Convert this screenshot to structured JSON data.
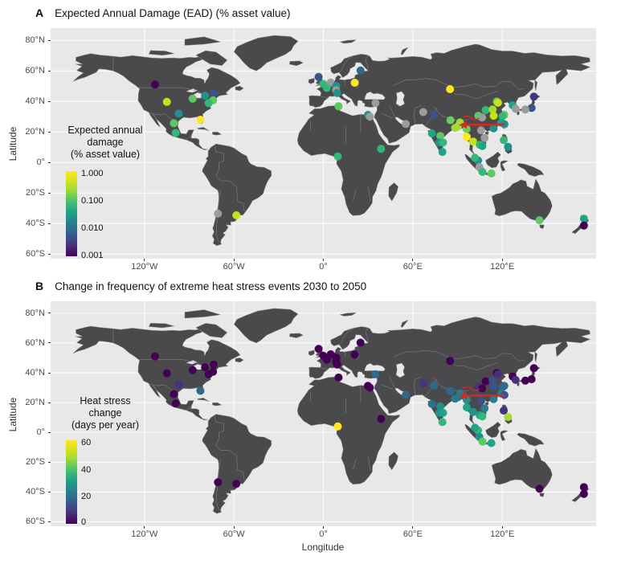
{
  "figure": {
    "background": "#ffffff",
    "panel_bg": "#e8e8e8",
    "land_color": "#4a4a4d",
    "country_border_color": "#8d8d91",
    "grid_color": "#ffffff",
    "na_point_color": "#9c9c9c",
    "arrow_color": "#d42a20"
  },
  "panels": [
    {
      "label": "A",
      "title": "Expected Annual Damage (EAD) (% asset value)",
      "ylabel": "Latitude",
      "xlabel": "",
      "legend": {
        "title_lines": [
          "Expected annual",
          "damage",
          "(% asset value)"
        ],
        "tick_labels": [
          "1.000",
          "0.100",
          "0.010",
          "0.001"
        ],
        "scale": "log"
      },
      "y_tick_labels": [
        "80°N",
        "60°N",
        "40°N",
        "20°N",
        "0°",
        "20°S",
        "40°S",
        "60°S"
      ],
      "x_tick_labels": [
        "120°W",
        "60°W",
        "0°",
        "60°E",
        "120°E"
      ]
    },
    {
      "label": "B",
      "title": "Change in frequency of extreme heat stress events 2030 to 2050",
      "ylabel": "Latitude",
      "xlabel": "Longitude",
      "legend": {
        "title_lines": [
          "Heat stress",
          "change",
          "(days per year)"
        ],
        "tick_labels": [
          "60",
          "40",
          "20",
          "0"
        ],
        "scale": "linear"
      },
      "y_tick_labels": [
        "80°N",
        "60°N",
        "40°N",
        "20°N",
        "0°",
        "20°S",
        "40°S",
        "60°S"
      ],
      "x_tick_labels": [
        "120°W",
        "60°W",
        "0°",
        "60°E",
        "120°E"
      ]
    }
  ],
  "chart_data": {
    "type": "scatter",
    "projection": "equirectangular",
    "lon_range": [
      -183,
      183
    ],
    "lat_range": [
      -63,
      88
    ],
    "lat_grid": [
      80,
      60,
      40,
      20,
      0,
      -20,
      -40,
      -60
    ],
    "lon_grid": [
      -120,
      -60,
      0,
      60,
      120
    ],
    "panel_a_scale": {
      "variable": "expected annual damage",
      "unit": "% asset value",
      "scale": "log",
      "ticks": [
        1.0,
        0.1,
        0.01,
        0.001
      ],
      "palette": "viridis",
      "na_color_used": true
    },
    "panel_b_scale": {
      "variable": "heat stress change",
      "unit": "days per year",
      "scale": "linear",
      "ticks": [
        60,
        40,
        20,
        0
      ],
      "palette": "viridis"
    },
    "annotation_arrow": {
      "lat": 24.6,
      "from_lon": 121.5,
      "to_lon": 90.8,
      "present_in_panels": [
        "A",
        "B"
      ]
    },
    "point_columns": [
      "lon",
      "lat",
      "ead_pct",
      "ead_color",
      "heat_days",
      "heat_color"
    ],
    "points": [
      [
        -113,
        51,
        0.001,
        "#440154",
        1,
        "#440154"
      ],
      [
        -105,
        39.7,
        0.5,
        "#c9e11b",
        2,
        "#440154"
      ],
      [
        -97,
        32,
        0.03,
        "#21918c",
        6,
        "#46327e"
      ],
      [
        -87.7,
        41.8,
        0.2,
        "#5ec962",
        1,
        "#440154"
      ],
      [
        -79.4,
        43.7,
        0.03,
        "#21918c",
        1,
        "#440154"
      ],
      [
        -73.6,
        45.5,
        0.004,
        "#3b528b",
        1,
        "#440154"
      ],
      [
        -74,
        40.7,
        0.2,
        "#5ec962",
        2,
        "#440154"
      ],
      [
        -77,
        38.9,
        0.1,
        "#35b779",
        2,
        "#440154"
      ],
      [
        -82.5,
        28,
        1.0,
        "#fde725",
        15,
        "#31688e"
      ],
      [
        -100.3,
        25.7,
        0.2,
        "#5ec962",
        2,
        "#440154"
      ],
      [
        -99.1,
        19.4,
        0.1,
        "#35b779",
        2,
        "#440154"
      ],
      [
        -70.7,
        -33.5,
        null,
        "#9c9c9c",
        1,
        "#440154"
      ],
      [
        -58.4,
        -34.6,
        0.5,
        "#c9e11b",
        1,
        "#440154"
      ],
      [
        -3.2,
        56,
        0.004,
        "#3b528b",
        1,
        "#440154"
      ],
      [
        -0.1,
        51.5,
        0.1,
        "#35b779",
        1,
        "#440154"
      ],
      [
        4.9,
        52.4,
        null,
        "#9c9c9c",
        1,
        "#440154"
      ],
      [
        2.3,
        48.8,
        0.1,
        "#35b779",
        1,
        "#440154"
      ],
      [
        8.7,
        50.1,
        0.03,
        "#21918c",
        1,
        "#440154"
      ],
      [
        8.5,
        47.4,
        null,
        "#9c9c9c",
        1,
        "#440154"
      ],
      [
        9.2,
        45.5,
        0.02,
        "#21918c",
        2,
        "#440154"
      ],
      [
        21,
        52.2,
        1.0,
        "#fde725",
        1,
        "#440154"
      ],
      [
        24.9,
        60.2,
        0.008,
        "#31688e",
        1,
        "#440154"
      ],
      [
        10.2,
        36.8,
        0.2,
        "#5ec962",
        3,
        "#440154"
      ],
      [
        29.9,
        31.2,
        0.03,
        "#21918c",
        3,
        "#440154"
      ],
      [
        31.2,
        30,
        null,
        "#9c9c9c",
        3,
        "#440154"
      ],
      [
        35,
        39,
        null,
        "#9c9c9c",
        14,
        "#31688e"
      ],
      [
        55.3,
        25.2,
        null,
        "#9c9c9c",
        16,
        "#31688e"
      ],
      [
        38.7,
        9,
        0.1,
        "#35b779",
        2,
        "#440154"
      ],
      [
        9.7,
        4,
        0.1,
        "#35b779",
        58,
        "#fde725"
      ],
      [
        85,
        48,
        1.0,
        "#fde725",
        1,
        "#440154"
      ],
      [
        67,
        33,
        null,
        "#9c9c9c",
        5,
        "#46327e"
      ],
      [
        74.3,
        31.5,
        0.004,
        "#3b528b",
        15,
        "#31688e"
      ],
      [
        72.8,
        19,
        0.05,
        "#20a486",
        18,
        "#2c728e"
      ],
      [
        78.5,
        17.4,
        0.2,
        "#5ec962",
        25,
        "#21918c"
      ],
      [
        77.6,
        13,
        0.03,
        "#21918c",
        25,
        "#21918c"
      ],
      [
        80.3,
        13.1,
        0.1,
        "#35b779",
        28,
        "#20a486"
      ],
      [
        79.9,
        6.9,
        0.05,
        "#20a486",
        32,
        "#35b779"
      ],
      [
        88.4,
        22.6,
        0.4,
        "#a5db36",
        20,
        "#287c8e"
      ],
      [
        90.4,
        23.7,
        0.45,
        "#a5db36",
        18,
        "#2c728e"
      ],
      [
        85.3,
        27.7,
        0.25,
        "#6cce59",
        12,
        "#31688e"
      ],
      [
        91.7,
        26.2,
        0.4,
        "#a5db36",
        20,
        "#287c8e"
      ],
      [
        96.1,
        21.9,
        0.25,
        "#6cce59",
        25,
        "#21918c"
      ],
      [
        96.2,
        16.8,
        1.0,
        "#fde725",
        27,
        "#20a486"
      ],
      [
        100.5,
        13.7,
        0.5,
        "#c9e11b",
        25,
        "#21918c"
      ],
      [
        104.9,
        11.6,
        0.1,
        "#35b779",
        28,
        "#20a486"
      ],
      [
        106.7,
        10.8,
        0.05,
        "#20a486",
        32,
        "#35b779"
      ],
      [
        105.8,
        21,
        null,
        "#9c9c9c",
        12,
        "#3b528b"
      ],
      [
        108.2,
        16.1,
        null,
        "#9c9c9c",
        20,
        "#287c8e"
      ],
      [
        104,
        30.6,
        0.2,
        "#5ec962",
        6,
        "#46327e"
      ],
      [
        106.5,
        29.5,
        null,
        "#9c9c9c",
        2,
        "#440154"
      ],
      [
        108.9,
        34.3,
        0.1,
        "#35b779",
        2,
        "#440154"
      ],
      [
        116.4,
        39.9,
        0.25,
        "#6cce59",
        1,
        "#440154"
      ],
      [
        117.2,
        39.1,
        0.5,
        "#c9e11b",
        5,
        "#46327e"
      ],
      [
        113.6,
        34.7,
        0.4,
        "#a5db36",
        10,
        "#3b528b"
      ],
      [
        114.3,
        30.6,
        0.5,
        "#c9e11b",
        10,
        "#3b528b"
      ],
      [
        121.4,
        31.2,
        0.2,
        "#5ec962",
        14,
        "#31688e"
      ],
      [
        120.2,
        30.3,
        0.1,
        "#35b779",
        14,
        "#31688e"
      ],
      [
        119.3,
        26.1,
        0.05,
        "#20a486",
        20,
        "#287c8e"
      ],
      [
        114.2,
        22.3,
        0.03,
        "#21918c",
        20,
        "#287c8e"
      ],
      [
        121.5,
        25.1,
        0.03,
        "#21918c",
        10,
        "#3b528b"
      ],
      [
        127,
        37.5,
        0.05,
        "#20a486",
        1,
        "#440154"
      ],
      [
        129,
        35.2,
        null,
        "#9c9c9c",
        5,
        "#46327e"
      ],
      [
        139.7,
        35.7,
        0.004,
        "#3b528b",
        1,
        "#440154"
      ],
      [
        135.5,
        34.7,
        null,
        "#9c9c9c",
        1,
        "#440154"
      ],
      [
        141.3,
        43.1,
        0.002,
        "#46327e",
        1,
        "#440154"
      ],
      [
        121,
        14.6,
        0.1,
        "#35b779",
        6,
        "#46327e"
      ],
      [
        123.9,
        10.3,
        0.03,
        "#21918c",
        45,
        "#a5db36"
      ],
      [
        103.8,
        1.3,
        0.03,
        "#21918c",
        32,
        "#35b779"
      ],
      [
        101.7,
        3.1,
        0.1,
        "#35b779",
        27,
        "#20a486"
      ],
      [
        104.7,
        -3,
        null,
        "#9c9c9c",
        25,
        "#21918c"
      ],
      [
        106.8,
        -6.2,
        0.1,
        "#35b779",
        38,
        "#5ec962"
      ],
      [
        112.7,
        -7.2,
        0.2,
        "#5ec962",
        27,
        "#20a486"
      ],
      [
        145,
        -37.8,
        0.2,
        "#5ec962",
        1,
        "#440154"
      ],
      [
        174.8,
        -36.8,
        0.05,
        "#20a486",
        1,
        "#440154"
      ],
      [
        174.8,
        -41.3,
        0.001,
        "#440154",
        1,
        "#440154"
      ]
    ]
  }
}
